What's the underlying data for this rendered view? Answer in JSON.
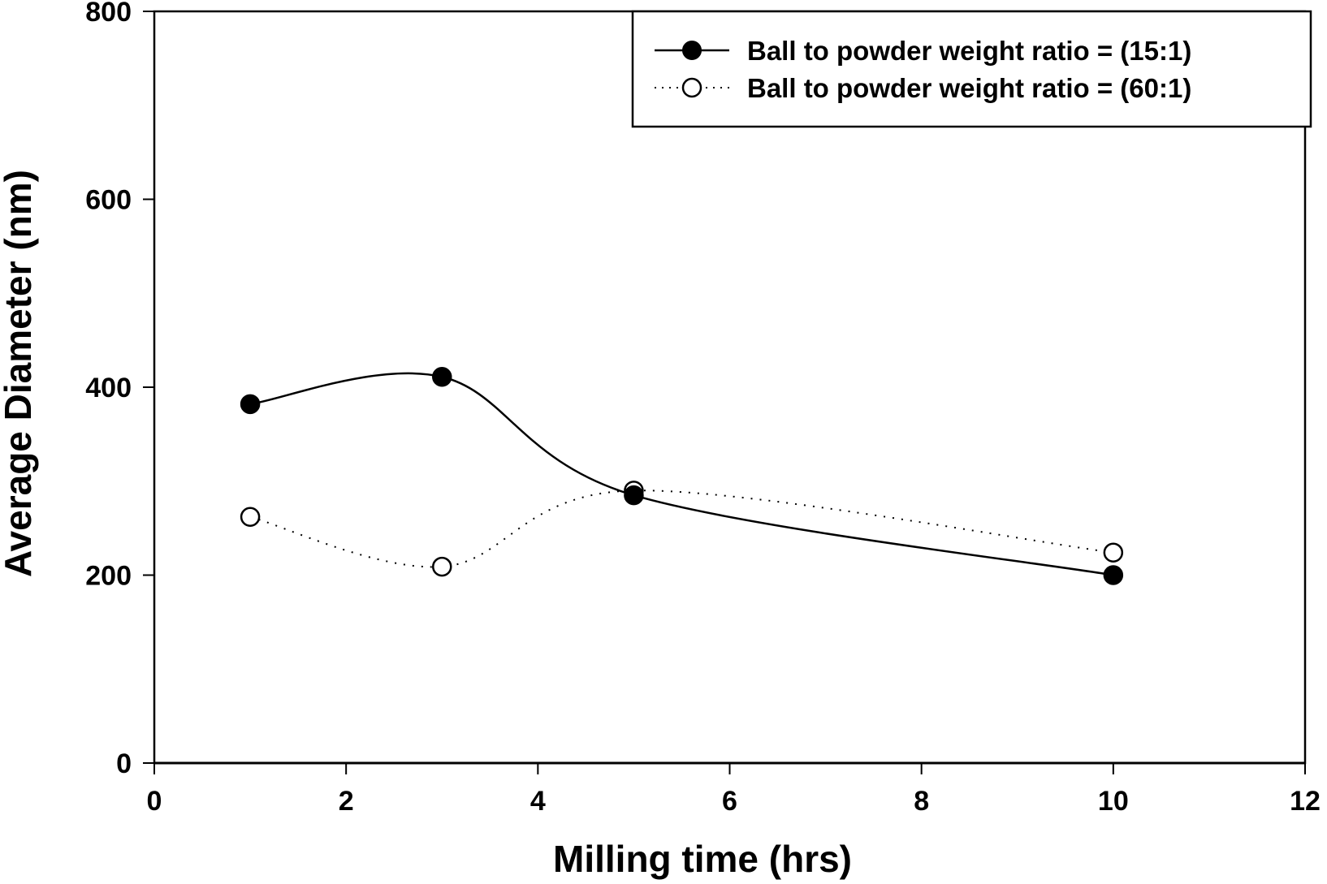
{
  "chart_data": {
    "type": "line",
    "title": "",
    "xlabel": "Milling time (hrs)",
    "ylabel": "Average Diameter (nm)",
    "xlim": [
      0,
      12
    ],
    "ylim": [
      0,
      800
    ],
    "xticks": [
      0,
      2,
      4,
      6,
      8,
      10,
      12
    ],
    "yticks": [
      0,
      200,
      400,
      600,
      800
    ],
    "xtick_labels": [
      "0",
      "2",
      "4",
      "6",
      "8",
      "10",
      "12"
    ],
    "ytick_labels": [
      "0",
      "200",
      "400",
      "600",
      "800"
    ],
    "grid": false,
    "legend_position": "top-right",
    "series": [
      {
        "name": "Ball to powder weight ratio = (15:1)",
        "marker": "filled-circle",
        "line_style": "solid",
        "smooth": true,
        "x": [
          1,
          3,
          5,
          10
        ],
        "values": [
          382,
          411,
          285,
          200
        ]
      },
      {
        "name": "Ball to powder weight ratio = (60:1)",
        "marker": "open-circle",
        "line_style": "dotted",
        "smooth": true,
        "x": [
          1,
          3,
          5,
          10
        ],
        "values": [
          262,
          209,
          290,
          224
        ]
      }
    ]
  }
}
